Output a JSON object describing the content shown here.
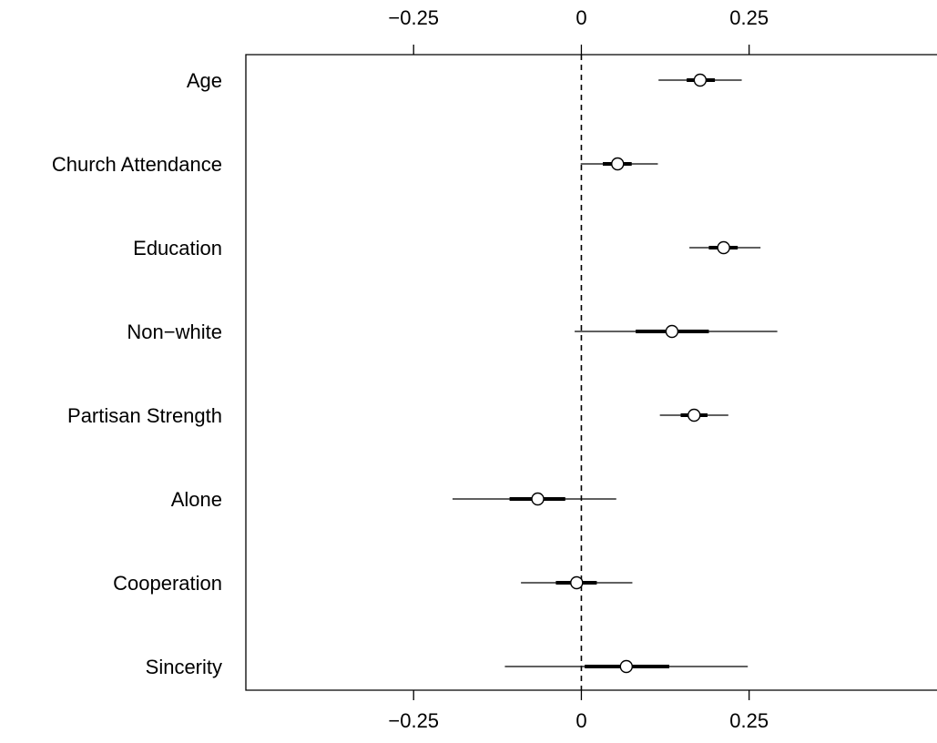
{
  "chart_data": {
    "type": "coefficient-plot",
    "title": "",
    "xlabel": "",
    "ylabel": "",
    "xlim": [
      -0.5,
      0.53
    ],
    "reference_line": 0,
    "x_ticks": [
      {
        "value": -0.25,
        "label": "−0.25"
      },
      {
        "value": 0,
        "label": "0"
      },
      {
        "value": 0.25,
        "label": "0.25"
      }
    ],
    "axes_shown": [
      "top",
      "bottom"
    ],
    "point_marker": "open-circle",
    "line_color": "#000000",
    "categories": [
      "Age",
      "Church Attendance",
      "Education",
      "Non−white",
      "Partisan Strength",
      "Alone",
      "Cooperation",
      "Sincerity"
    ],
    "series": [
      {
        "estimates": [
          0.177,
          0.054,
          0.212,
          0.135,
          0.168,
          -0.065,
          -0.007,
          0.067
        ],
        "inner_interval": [
          [
            0.157,
            0.199
          ],
          [
            0.032,
            0.075
          ],
          [
            0.19,
            0.233
          ],
          [
            0.081,
            0.19
          ],
          [
            0.148,
            0.188
          ],
          [
            -0.107,
            -0.024
          ],
          [
            -0.038,
            0.023
          ],
          [
            0.005,
            0.131
          ]
        ],
        "outer_interval": [
          [
            0.115,
            0.239
          ],
          [
            -0.001,
            0.114
          ],
          [
            0.161,
            0.267
          ],
          [
            -0.01,
            0.292
          ],
          [
            0.117,
            0.219
          ],
          [
            -0.192,
            0.052
          ],
          [
            -0.09,
            0.076
          ],
          [
            -0.114,
            0.248
          ]
        ]
      }
    ]
  }
}
